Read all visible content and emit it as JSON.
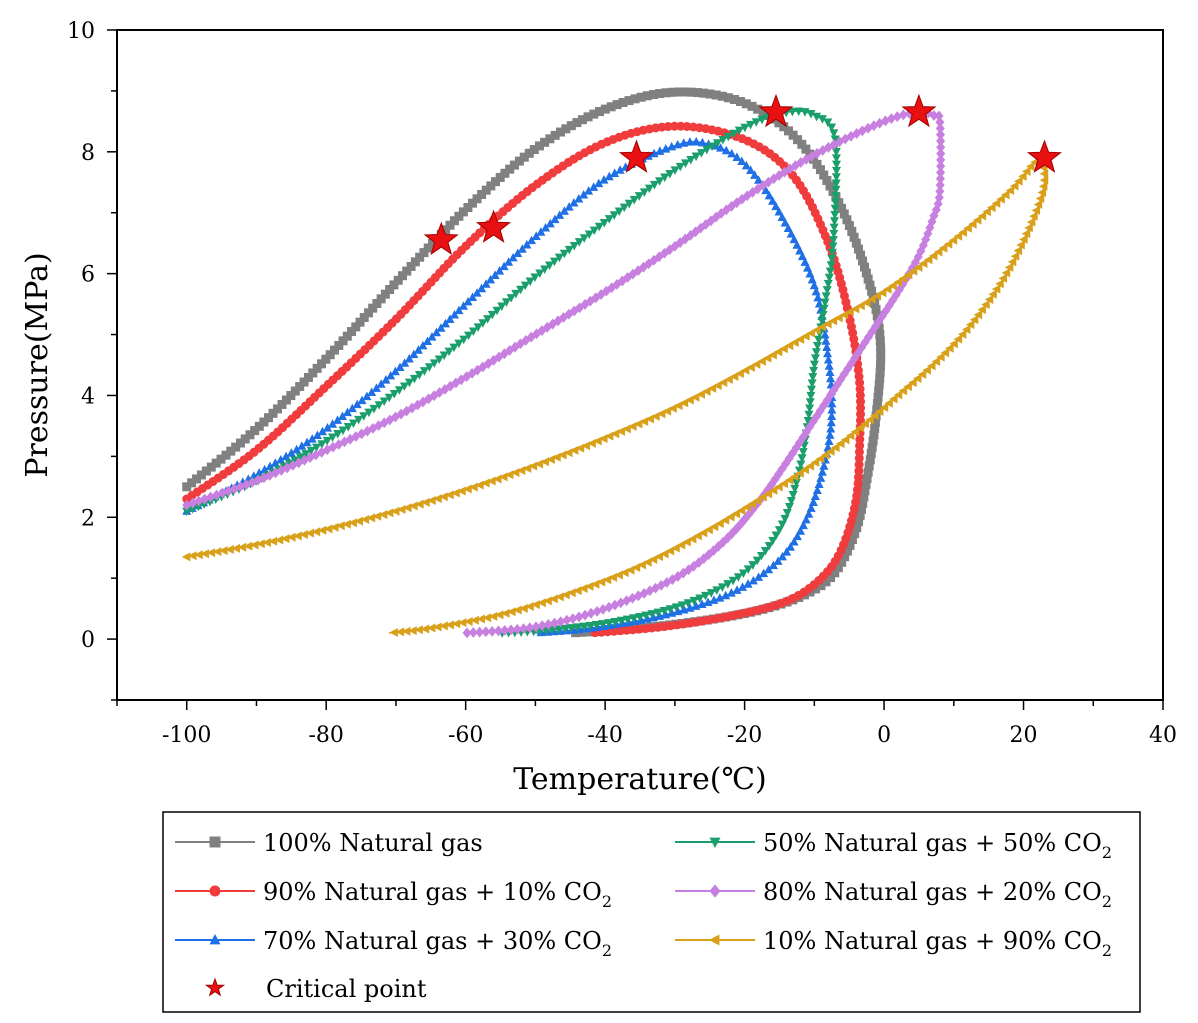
{
  "chart_data": {
    "type": "scatter",
    "title": "",
    "xlabel": "Temperature(℃)",
    "ylabel": "Pressure(MPa)",
    "xlim": [
      -110,
      40
    ],
    "ylim": [
      -1,
      10
    ],
    "xticks": [
      -100,
      -80,
      -60,
      -40,
      -20,
      0,
      20,
      40
    ],
    "yticks": [
      0,
      2,
      4,
      6,
      8,
      10
    ],
    "xtick_labels": [
      "-100",
      "-80",
      "-60",
      "-40",
      "-20",
      "0",
      "20",
      "40"
    ],
    "ytick_labels": [
      "0",
      "2",
      "4",
      "6",
      "8",
      "10"
    ],
    "grid": false,
    "legend_position": "bottom",
    "series": [
      {
        "name": "100% Natural gas",
        "label_main": "100% Natural gas",
        "label_sub": "",
        "label_tail": "",
        "color": "#808080",
        "marker": "square",
        "bubble": [
          [
            -100,
            2.5
          ],
          [
            -90,
            3.45
          ],
          [
            -80,
            4.6
          ],
          [
            -70,
            5.85
          ],
          [
            -60,
            7.05
          ],
          [
            -50,
            8.05
          ],
          [
            -40,
            8.7
          ],
          [
            -30,
            8.98
          ],
          [
            -20,
            8.8
          ],
          [
            -12,
            8.15
          ],
          [
            -6,
            7.05
          ],
          [
            -2,
            5.8
          ],
          [
            -0.5,
            4.8
          ],
          [
            -1.2,
            3.6
          ],
          [
            -2.5,
            2.6
          ],
          [
            -4,
            1.8
          ],
          [
            -7,
            1.1
          ],
          [
            -11,
            0.75
          ],
          [
            -17,
            0.5
          ],
          [
            -25,
            0.32
          ],
          [
            -35,
            0.18
          ],
          [
            -45,
            0.1
          ]
        ],
        "critical": null
      },
      {
        "name": "90% Natural gas + 10% CO2",
        "label_main": "90% Natural gas + 10% CO",
        "label_sub": "2",
        "label_tail": "",
        "color": "#f03c3c",
        "marker": "circle",
        "bubble": [
          [
            -100,
            2.3
          ],
          [
            -90,
            3.1
          ],
          [
            -80,
            4.15
          ],
          [
            -70,
            5.25
          ],
          [
            -60,
            6.45
          ],
          [
            -50,
            7.45
          ],
          [
            -40,
            8.15
          ],
          [
            -30,
            8.42
          ],
          [
            -20,
            8.2
          ],
          [
            -13,
            7.6
          ],
          [
            -8,
            6.5
          ],
          [
            -5,
            5.3
          ],
          [
            -3.5,
            4.2
          ],
          [
            -3.5,
            3.2
          ],
          [
            -4,
            2.3
          ],
          [
            -6,
            1.5
          ],
          [
            -9,
            1.0
          ],
          [
            -14,
            0.62
          ],
          [
            -22,
            0.38
          ],
          [
            -32,
            0.2
          ],
          [
            -42,
            0.1
          ]
        ],
        "critical": [
          -56,
          6.75
        ]
      },
      {
        "name": "70% Natural gas + 30% CO2",
        "label_main": "70% Natural gas + 30% CO",
        "label_sub": "2",
        "label_tail": "",
        "color": "#1f6fe5",
        "marker": "triangle-up",
        "bubble": [
          [
            -100,
            2.1
          ],
          [
            -90,
            2.7
          ],
          [
            -80,
            3.45
          ],
          [
            -70,
            4.4
          ],
          [
            -60,
            5.5
          ],
          [
            -50,
            6.6
          ],
          [
            -40,
            7.55
          ],
          [
            -30,
            8.1
          ],
          [
            -25,
            8.12
          ],
          [
            -20,
            7.8
          ],
          [
            -15,
            7.0
          ],
          [
            -10,
            5.8
          ],
          [
            -8,
            4.6
          ],
          [
            -7.5,
            3.7
          ],
          [
            -8.5,
            2.9
          ],
          [
            -11,
            2.0
          ],
          [
            -15,
            1.3
          ],
          [
            -22,
            0.75
          ],
          [
            -32,
            0.38
          ],
          [
            -42,
            0.18
          ],
          [
            -50,
            0.1
          ]
        ],
        "critical": [
          -35.5,
          7.9
        ]
      },
      {
        "name": "50% Natural gas + 50% CO2",
        "label_main": "50% Natural gas + 50% CO",
        "label_sub": "2",
        "label_tail": "",
        "color": "#1a9e6b",
        "marker": "triangle-down",
        "bubble": [
          [
            -100,
            2.1
          ],
          [
            -90,
            2.6
          ],
          [
            -80,
            3.25
          ],
          [
            -70,
            4.05
          ],
          [
            -60,
            4.95
          ],
          [
            -50,
            5.95
          ],
          [
            -40,
            6.85
          ],
          [
            -30,
            7.7
          ],
          [
            -20,
            8.4
          ],
          [
            -14,
            8.65
          ],
          [
            -10,
            8.6
          ],
          [
            -7,
            8.2
          ],
          [
            -7.3,
            6.5
          ],
          [
            -8.5,
            5.5
          ],
          [
            -10,
            4.5
          ],
          [
            -11,
            3.5
          ],
          [
            -12.5,
            2.6
          ],
          [
            -15,
            1.8
          ],
          [
            -20,
            1.1
          ],
          [
            -28,
            0.6
          ],
          [
            -38,
            0.3
          ],
          [
            -48,
            0.15
          ],
          [
            -55,
            0.1
          ]
        ],
        "critical": [
          -15.5,
          8.65
        ]
      },
      {
        "name": "80% Natural gas + 20% CO2",
        "label_main": "80% Natural gas + 20% CO",
        "label_sub": "2",
        "label_tail": "",
        "color": "#c77fe0",
        "marker": "diamond",
        "bubble": [
          [
            -100,
            2.2
          ],
          [
            -90,
            2.6
          ],
          [
            -80,
            3.1
          ],
          [
            -70,
            3.65
          ],
          [
            -60,
            4.3
          ],
          [
            -50,
            5.0
          ],
          [
            -40,
            5.7
          ],
          [
            -30,
            6.45
          ],
          [
            -20,
            7.25
          ],
          [
            -10,
            7.95
          ],
          [
            0,
            8.5
          ],
          [
            5,
            8.65
          ],
          [
            7,
            8.6
          ],
          [
            8,
            8.5
          ],
          [
            8,
            7.35
          ],
          [
            7,
            6.9
          ],
          [
            5,
            6.3
          ],
          [
            2,
            5.7
          ],
          [
            -2,
            5.0
          ],
          [
            -6,
            4.3
          ],
          [
            -10,
            3.6
          ],
          [
            -14,
            2.9
          ],
          [
            -18,
            2.25
          ],
          [
            -23,
            1.6
          ],
          [
            -30,
            1.0
          ],
          [
            -40,
            0.5
          ],
          [
            -50,
            0.2
          ],
          [
            -60,
            0.1
          ]
        ],
        "critical": [
          5,
          8.65
        ]
      },
      {
        "name": "10% Natural gas + 90% CO2",
        "label_main": "10% Natural gas + 90% CO",
        "label_sub": "2",
        "label_tail": "",
        "color": "#d9a01a",
        "marker": "triangle-left",
        "bubble": [
          [
            -100,
            1.35
          ],
          [
            -90,
            1.55
          ],
          [
            -80,
            1.8
          ],
          [
            -70,
            2.1
          ],
          [
            -60,
            2.45
          ],
          [
            -50,
            2.85
          ],
          [
            -40,
            3.3
          ],
          [
            -30,
            3.8
          ],
          [
            -20,
            4.4
          ],
          [
            -10,
            5.05
          ],
          [
            0,
            5.7
          ],
          [
            10,
            6.55
          ],
          [
            18,
            7.35
          ],
          [
            22,
            7.85
          ],
          [
            23,
            7.5
          ],
          [
            21,
            6.8
          ],
          [
            17,
            5.9
          ],
          [
            12,
            5.1
          ],
          [
            7,
            4.5
          ],
          [
            2,
            4.0
          ],
          [
            -2,
            3.6
          ],
          [
            -8,
            3.05
          ],
          [
            -15,
            2.5
          ],
          [
            -25,
            1.8
          ],
          [
            -35,
            1.2
          ],
          [
            -45,
            0.75
          ],
          [
            -55,
            0.4
          ],
          [
            -65,
            0.18
          ],
          [
            -71,
            0.1
          ]
        ],
        "critical": [
          23,
          7.9
        ]
      }
    ],
    "extra_critical_points": [
      [
        -63.5,
        6.55
      ]
    ],
    "critical_point_label": "Critical point",
    "critical_point_color": "#e81010"
  }
}
